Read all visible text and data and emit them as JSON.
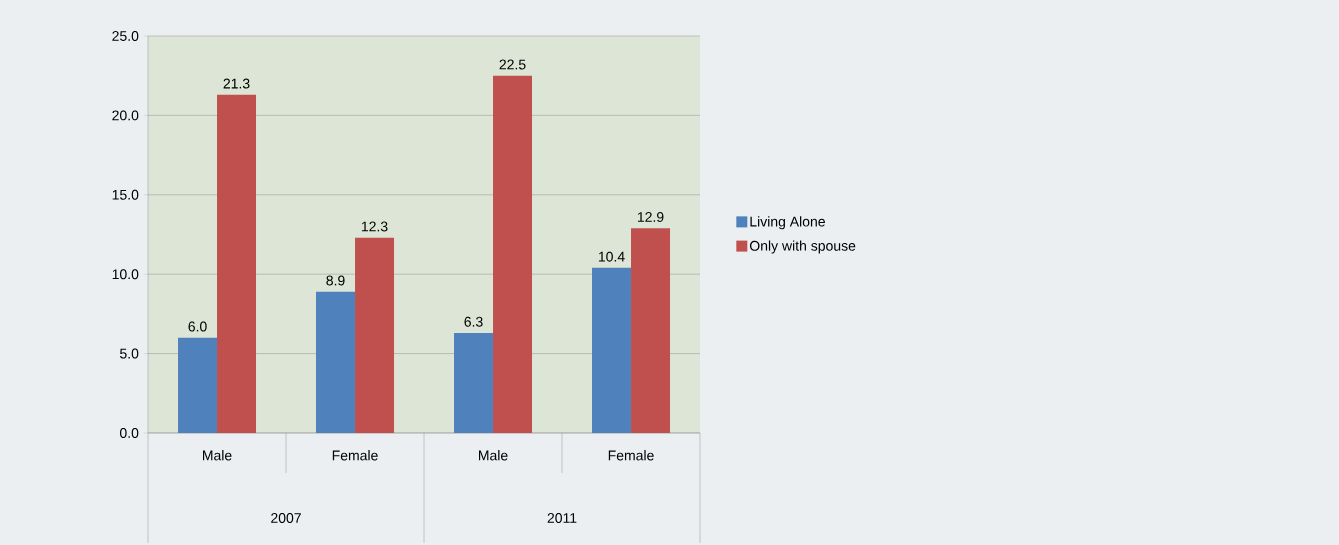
{
  "chart_data": {
    "type": "bar",
    "categories": [
      "Male",
      "Female",
      "Male",
      "Female"
    ],
    "series": [
      {
        "name": "Living Alone",
        "color": "#4f81bd",
        "values": [
          6.0,
          8.9,
          6.3,
          10.4
        ],
        "value_labels": [
          "6.0",
          "8.9",
          "6.3",
          "10.4"
        ]
      },
      {
        "name": "Only with spouse",
        "color": "#c0504d",
        "values": [
          21.3,
          12.3,
          22.5,
          12.9
        ],
        "value_labels": [
          "21.3",
          "12.3",
          "22.5",
          "12.9"
        ]
      }
    ],
    "ylim": [
      0,
      25
    ],
    "yticks": [
      {
        "value": 0,
        "label": "0.0"
      },
      {
        "value": 5,
        "label": "5.0"
      },
      {
        "value": 10,
        "label": "10.0"
      },
      {
        "value": 15,
        "label": "15.0"
      },
      {
        "value": 20,
        "label": "20.0"
      },
      {
        "value": 25,
        "label": "25.0"
      }
    ],
    "annotations": [
      "2007",
      "2011"
    ],
    "grid": "y",
    "legend": "right"
  }
}
